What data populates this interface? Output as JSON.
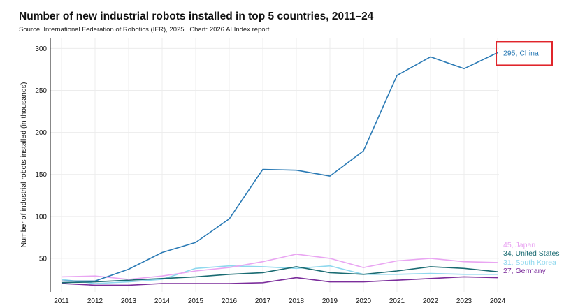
{
  "chart_data": {
    "type": "line",
    "title": "Number of new industrial robots installed in top 5 countries, 2011–24",
    "subtitle": "Source: International Federation of Robotics (IFR), 2025 | Chart: 2026 AI Index report",
    "xlabel": "",
    "ylabel": "Number of industrial robots installed (in thousands)",
    "x": [
      2011,
      2012,
      2013,
      2014,
      2015,
      2016,
      2017,
      2018,
      2019,
      2020,
      2021,
      2022,
      2023,
      2024
    ],
    "xticks": [
      "2011",
      "2012",
      "2013",
      "2014",
      "2015",
      "2016",
      "2017",
      "2018",
      "2019",
      "2020",
      "2021",
      "2022",
      "2023",
      "2024"
    ],
    "ylim": [
      10,
      312
    ],
    "yticks": [
      50,
      100,
      150,
      200,
      250,
      300
    ],
    "ytick_labels": [
      "50",
      "100",
      "150",
      "200",
      "250",
      "300"
    ],
    "grid": true,
    "series": [
      {
        "name": "China",
        "color": "#2a7ab5",
        "label": "295, China",
        "values": [
          23,
          23,
          37,
          57,
          69,
          97,
          156,
          155,
          148,
          178,
          268,
          290,
          276,
          295
        ]
      },
      {
        "name": "Japan",
        "color": "#e9a5f2",
        "label": "45, Japan",
        "values": [
          28,
          29,
          25,
          29,
          35,
          39,
          46,
          55,
          50,
          39,
          47,
          50,
          46,
          45
        ]
      },
      {
        "name": "United States",
        "color": "#1a6b72",
        "label": "34, United States",
        "values": [
          21,
          22,
          24,
          26,
          28,
          31,
          33,
          40,
          33,
          31,
          35,
          40,
          38,
          34
        ]
      },
      {
        "name": "South Korea",
        "color": "#8fd8ee",
        "label": "31, South Korea",
        "values": [
          25,
          20,
          22,
          25,
          38,
          41,
          40,
          38,
          41,
          31,
          31,
          32,
          31,
          31
        ]
      },
      {
        "name": "Germany",
        "color": "#7b2d9b",
        "label": "27, Germany",
        "values": [
          20,
          18,
          18,
          20,
          20,
          20,
          21,
          27,
          22,
          22,
          24,
          26,
          28,
          27
        ]
      }
    ],
    "highlight": {
      "series": "China",
      "color": "#e0252b"
    }
  }
}
